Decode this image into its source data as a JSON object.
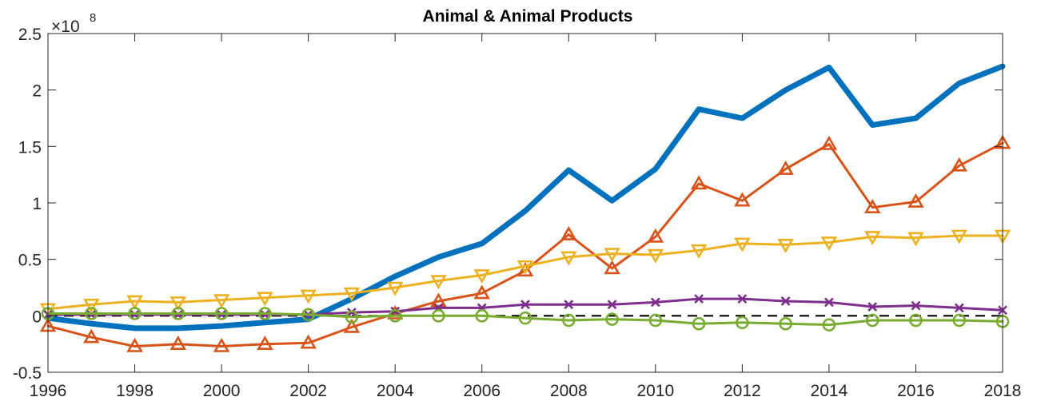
{
  "chart_data": {
    "type": "line",
    "title": "Animal & Animal Products",
    "xlabel": "",
    "ylabel": "",
    "y_exponent": {
      "base": "×10",
      "power": "8"
    },
    "xlim": [
      1996,
      2018
    ],
    "ylim": [
      -0.5,
      2.5
    ],
    "x_ticks": [
      1996,
      1998,
      2000,
      2002,
      2004,
      2006,
      2008,
      2010,
      2012,
      2014,
      2016,
      2018
    ],
    "x_tick_labels": [
      "1996",
      "1998",
      "2000",
      "2002",
      "2004",
      "2006",
      "2008",
      "2010",
      "2012",
      "2014",
      "2016",
      "2018"
    ],
    "y_ticks": [
      -0.5,
      0,
      0.5,
      1,
      1.5,
      2,
      2.5
    ],
    "y_tick_labels": [
      "-0.5",
      "0",
      "0.5",
      "1",
      "1.5",
      "2",
      "2.5"
    ],
    "grid": false,
    "x": [
      1996,
      1997,
      1998,
      1999,
      2000,
      2001,
      2002,
      2003,
      2004,
      2005,
      2006,
      2007,
      2008,
      2009,
      2010,
      2011,
      2012,
      2013,
      2014,
      2015,
      2016,
      2017,
      2018
    ],
    "series": [
      {
        "color": "#0072BD",
        "marker": "none",
        "linewidth": 7,
        "values": [
          -0.02,
          -0.07,
          -0.11,
          -0.11,
          -0.09,
          -0.06,
          -0.03,
          0.15,
          0.35,
          0.52,
          0.64,
          0.93,
          1.29,
          1.02,
          1.3,
          1.83,
          1.75,
          2.0,
          2.2,
          1.69,
          1.75,
          2.06,
          2.21
        ]
      },
      {
        "color": "#D95319",
        "marker": "triangle-up",
        "linewidth": 3,
        "values": [
          -0.09,
          -0.19,
          -0.27,
          -0.25,
          -0.27,
          -0.25,
          -0.24,
          -0.1,
          0.02,
          0.13,
          0.2,
          0.4,
          0.72,
          0.42,
          0.7,
          1.17,
          1.02,
          1.3,
          1.52,
          0.96,
          1.01,
          1.33,
          1.53
        ]
      },
      {
        "color": "#EDB120",
        "marker": "triangle-down",
        "linewidth": 3,
        "values": [
          0.06,
          0.1,
          0.13,
          0.12,
          0.14,
          0.16,
          0.18,
          0.2,
          0.25,
          0.31,
          0.36,
          0.44,
          0.52,
          0.55,
          0.54,
          0.58,
          0.64,
          0.63,
          0.65,
          0.7,
          0.69,
          0.71,
          0.71
        ]
      },
      {
        "color": "#7E2F8E",
        "marker": "x",
        "linewidth": 3,
        "values": [
          0.01,
          0.01,
          0.01,
          0.01,
          0.01,
          0.01,
          0.01,
          0.03,
          0.04,
          0.07,
          0.07,
          0.1,
          0.1,
          0.1,
          0.12,
          0.15,
          0.15,
          0.13,
          0.12,
          0.08,
          0.09,
          0.07,
          0.05
        ]
      },
      {
        "color": "#77AC30",
        "marker": "circle",
        "linewidth": 3,
        "values": [
          0.02,
          0.02,
          0.02,
          0.02,
          0.02,
          0.02,
          0.01,
          -0.01,
          0.0,
          0.0,
          0.0,
          -0.02,
          -0.04,
          -0.03,
          -0.04,
          -0.07,
          -0.06,
          -0.07,
          -0.08,
          -0.04,
          -0.04,
          -0.04,
          -0.05
        ]
      }
    ],
    "reference_line": {
      "y": 0,
      "color": "#000000",
      "style": "dashed"
    }
  }
}
